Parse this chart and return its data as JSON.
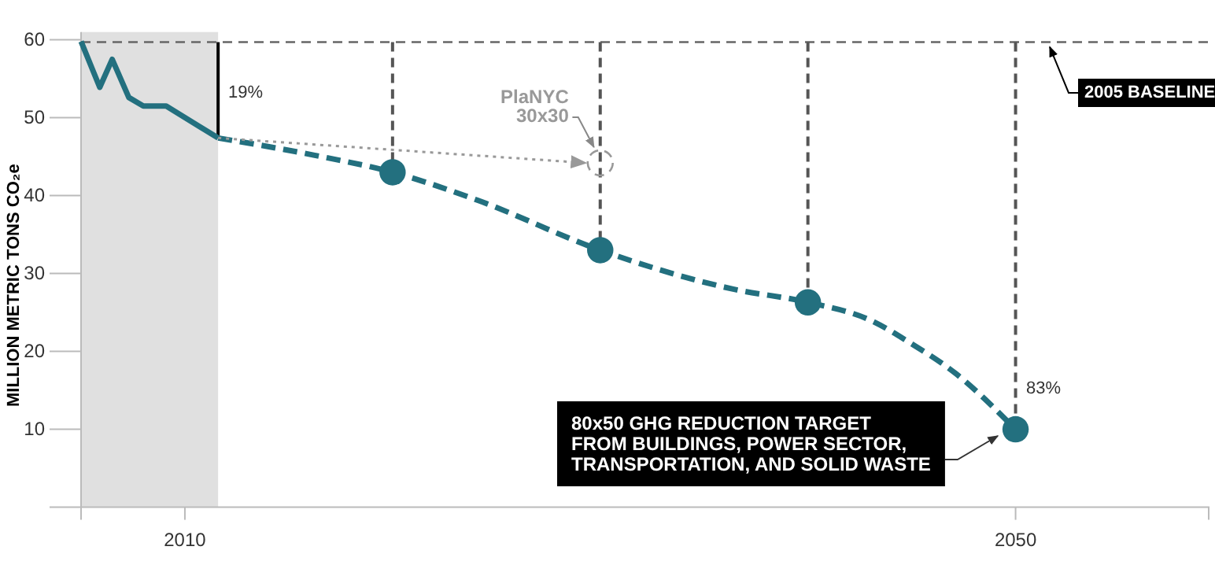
{
  "chart_data": {
    "type": "line",
    "ylabel": "MILLION METRIC TONS CO₂e",
    "xlim": [
      2005,
      2059.3
    ],
    "ylim": [
      0,
      61
    ],
    "xticks": [
      2010,
      2050
    ],
    "yticks": [
      10,
      20,
      30,
      40,
      50,
      60
    ],
    "grid": false,
    "series": [
      {
        "color": "#23707f",
        "line_style": "solid",
        "marker": "none",
        "x": [
          2005,
          2005.9,
          2006.5,
          2007.3,
          2008,
          2009.1,
          2011.6
        ],
        "values": [
          59.8,
          53.9,
          57.5,
          52.6,
          51.5,
          51.5,
          47.4
        ]
      },
      {
        "color": "#23707f",
        "line_style": "dashed",
        "marker": "none",
        "x": [
          2011.6,
          2016.2,
          2020,
          2024.1,
          2030,
          2036.4,
          2040,
          2043.1,
          2044.8,
          2047.1,
          2050
        ],
        "values": [
          47.4,
          45.2,
          43,
          39.4,
          33,
          28,
          26.3,
          23.9,
          21.3,
          17.2,
          10
        ]
      },
      {
        "type": "scatter",
        "color": "#23707f",
        "marker": "circle",
        "x": [
          2020,
          2030,
          2040,
          2050
        ],
        "values": [
          43,
          33,
          26.3,
          10
        ]
      },
      {
        "color": "#999999",
        "line_style": "dotted",
        "marker": "none",
        "x": [
          2011.6,
          2029.3
        ],
        "values": [
          47.4,
          44.2
        ]
      },
      {
        "type": "scatter",
        "color": "#999999",
        "marker": "circle",
        "line_style": "dashed",
        "x": [
          2030
        ],
        "values": [
          44.2
        ]
      }
    ],
    "bands": [
      {
        "axis": "x",
        "from": 2005,
        "to": 2011.6,
        "color": "#e0e0e0"
      }
    ],
    "ref_lines": [
      {
        "axis": "y",
        "value": 59.7,
        "label": "2005 BASELINE",
        "color": "#666666",
        "line_style": "dashed"
      },
      {
        "axis": "x",
        "value": 2011.6,
        "label": null,
        "color": "#000000",
        "line_style": "solid"
      },
      {
        "axis": "x",
        "value": 2020,
        "label": null,
        "color": "#555555",
        "line_style": "dashed"
      },
      {
        "axis": "x",
        "value": 2030,
        "label": null,
        "color": "#555555",
        "line_style": "dashed"
      },
      {
        "axis": "x",
        "value": 2040,
        "label": null,
        "color": "#555555",
        "line_style": "dashed"
      },
      {
        "axis": "x",
        "value": 2050,
        "label": null,
        "color": "#555555",
        "line_style": "dashed"
      }
    ],
    "annotations": [
      {
        "text": "PlaNYC\n30x30",
        "x": 2030,
        "y": 44.2
      },
      "80x50 GHG REDUCTION TARGET\nFROM BUILDINGS, POWER SECTOR,\nTRANSPORTATION, AND SOLID WASTE",
      "19%",
      "83%"
    ]
  }
}
